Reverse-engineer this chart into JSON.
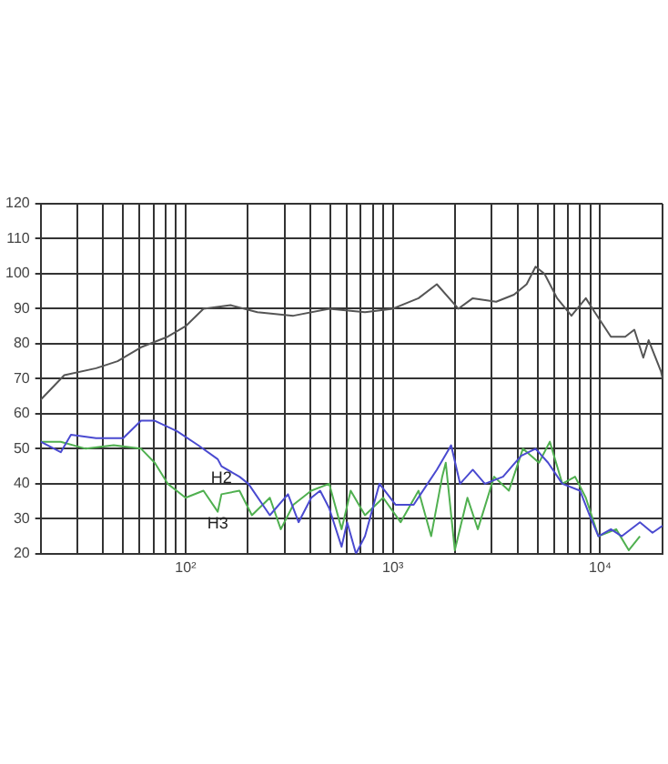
{
  "chart_data": {
    "type": "line",
    "log": "x",
    "grid": true,
    "legend": false,
    "marker": "none",
    "line_style": "solid",
    "xlim": [
      20,
      20000
    ],
    "xticks": [
      {
        "value": 20,
        "label": null
      },
      {
        "value": 30,
        "label": null
      },
      {
        "value": 40,
        "label": null
      },
      {
        "value": 50,
        "label": null
      },
      {
        "value": 60,
        "label": null
      },
      {
        "value": 70,
        "label": null
      },
      {
        "value": 80,
        "label": null
      },
      {
        "value": 90,
        "label": null
      },
      {
        "value": 100,
        "label": "10²"
      },
      {
        "value": 200,
        "label": null
      },
      {
        "value": 300,
        "label": null
      },
      {
        "value": 400,
        "label": null
      },
      {
        "value": 500,
        "label": null
      },
      {
        "value": 600,
        "label": null
      },
      {
        "value": 700,
        "label": null
      },
      {
        "value": 800,
        "label": null
      },
      {
        "value": 900,
        "label": null
      },
      {
        "value": 1000,
        "label": "10³"
      },
      {
        "value": 2000,
        "label": null
      },
      {
        "value": 3000,
        "label": null
      },
      {
        "value": 4000,
        "label": null
      },
      {
        "value": 5000,
        "label": null
      },
      {
        "value": 6000,
        "label": null
      },
      {
        "value": 7000,
        "label": null
      },
      {
        "value": 8000,
        "label": null
      },
      {
        "value": 9000,
        "label": null
      },
      {
        "value": 10000,
        "label": "10⁴"
      },
      {
        "value": 20000,
        "label": null
      }
    ],
    "ylim": [
      20,
      120
    ],
    "yticks": [
      20,
      30,
      40,
      50,
      60,
      70,
      80,
      90,
      100,
      110,
      120
    ],
    "annotations": [
      {
        "text": "H2",
        "x": 149,
        "y": 45
      },
      {
        "text": "H3",
        "x": 143,
        "y": 32
      }
    ],
    "series": [
      {
        "color": "#555555",
        "x": [
          20,
          26,
          37,
          47,
          61,
          82,
          100,
          122,
          165,
          222,
          331,
          493,
          734,
          1000,
          1330,
          1630,
          2070,
          2430,
          3150,
          3840,
          4420,
          4880,
          5390,
          6200,
          7270,
          8530,
          9420,
          11270,
          13210,
          14620,
          16150,
          17140,
          19680,
          20000
        ],
        "values": [
          64,
          71,
          73,
          75,
          79,
          82,
          85,
          90,
          91,
          89,
          88,
          90,
          89,
          90,
          93,
          97,
          90,
          93,
          92,
          94,
          97,
          102,
          100,
          93,
          88,
          93,
          89,
          82,
          82,
          84,
          76,
          81,
          72,
          70
        ]
      },
      {
        "color": "#4a4ad0",
        "x": [
          20,
          25,
          28,
          37,
          50,
          61,
          71,
          91,
          115,
          143,
          149,
          182,
          201,
          255,
          312,
          351,
          404,
          446,
          493,
          566,
          602,
          664,
          734,
          862,
          1030,
          1260,
          1470,
          1630,
          1870,
          1910,
          2110,
          2430,
          2780,
          3400,
          4160,
          4880,
          5610,
          6570,
          8000,
          8890,
          9810,
          11270,
          12720,
          15560,
          17890,
          20000
        ],
        "values": [
          52,
          49,
          54,
          53,
          53,
          58,
          58,
          55,
          51,
          47,
          45,
          42,
          40,
          31,
          37,
          29,
          36,
          38,
          33,
          22,
          29,
          20,
          25,
          40,
          34,
          34,
          40,
          44,
          50,
          51,
          40,
          44,
          40,
          42,
          48,
          50,
          46,
          40,
          38,
          31,
          25,
          27,
          25,
          29,
          26,
          28
        ]
      },
      {
        "color": "#50b050",
        "x": [
          20,
          25,
          33,
          45,
          61,
          71,
          82,
          100,
          122,
          143,
          149,
          182,
          209,
          255,
          288,
          331,
          404,
          493,
          566,
          626,
          734,
          898,
          1090,
          1330,
          1530,
          1730,
          1800,
          1990,
          2290,
          2570,
          3080,
          3630,
          4240,
          5070,
          5720,
          6570,
          7570,
          8530,
          9810,
          11950,
          13750,
          15560
        ],
        "values": [
          52,
          52,
          50,
          51,
          50,
          46,
          40,
          36,
          38,
          32,
          37,
          38,
          31,
          36,
          27,
          34,
          38,
          40,
          27,
          38,
          31,
          36,
          29,
          38,
          25,
          42,
          46,
          21,
          36,
          27,
          42,
          38,
          50,
          46,
          52,
          40,
          42,
          36,
          25,
          27,
          21,
          25
        ]
      }
    ]
  }
}
